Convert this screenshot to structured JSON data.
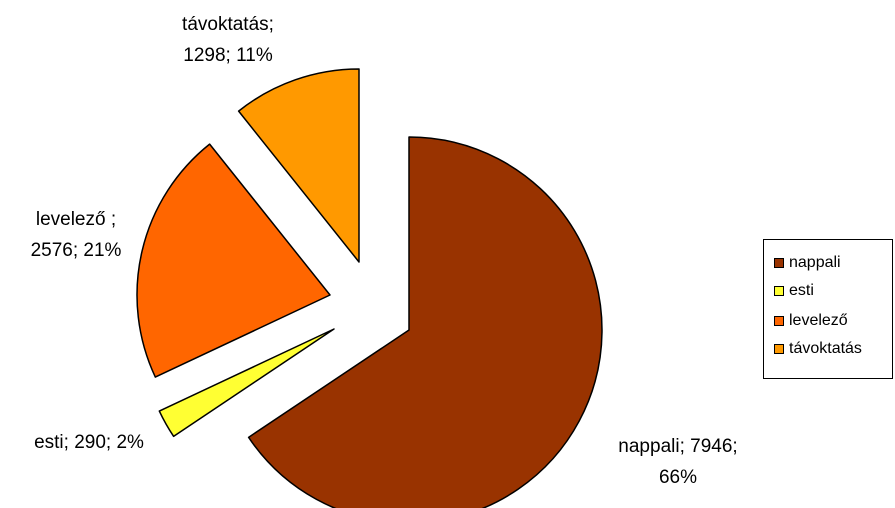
{
  "chart_data": {
    "type": "pie",
    "title": "",
    "slices": [
      {
        "name": "nappali",
        "value": 7946,
        "percent": "66%",
        "color": "#993300",
        "label_lines": [
          "nappali; 7946;",
          "66%"
        ]
      },
      {
        "name": "esti",
        "value": 290,
        "percent": "2%",
        "color": "#FFFF33",
        "label_lines": [
          "esti; 290; 2%"
        ]
      },
      {
        "name": "levelező",
        "value": 2576,
        "percent": "21%",
        "color": "#FF6600",
        "label_lines": [
          "levelező ;",
          "2576; 21%"
        ]
      },
      {
        "name": "távoktatás",
        "value": 1298,
        "percent": "11%",
        "color": "#FF9900",
        "label_lines": [
          "távoktatás;",
          "1298; 11%"
        ]
      }
    ],
    "exploded": true,
    "legend_position": "right",
    "legend": [
      "nappali",
      "esti",
      "levelező",
      "távoktatás"
    ]
  }
}
